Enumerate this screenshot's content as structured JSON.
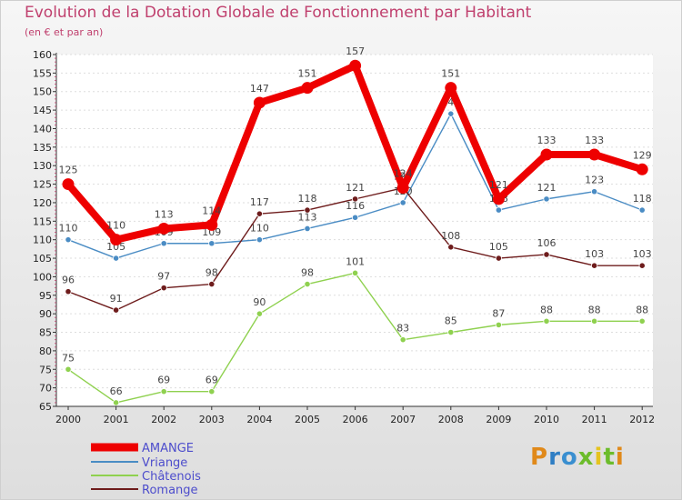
{
  "title": "Evolution de la Dotation Globale de Fonctionnement par Habitant",
  "subtitle": "(en € et par an)",
  "logo": {
    "p": "P",
    "r": "r",
    "o": "o",
    "x": "x",
    "i1": "i",
    "t": "t",
    "i2": "i"
  },
  "chart_data": {
    "type": "line",
    "title": "Evolution de la Dotation Globale de Fonctionnement par Habitant",
    "subtitle": "(en € et par an)",
    "x": [
      2000,
      2001,
      2002,
      2003,
      2004,
      2005,
      2006,
      2007,
      2008,
      2009,
      2010,
      2011,
      2012
    ],
    "ylim": [
      65,
      160
    ],
    "ytick_step": 5,
    "legend_position": "bottom-left",
    "series": [
      {
        "name": "AMANGE",
        "color": "#ee0000",
        "emphasis": true,
        "values": [
          125,
          110,
          113,
          114,
          147,
          151,
          157,
          124,
          151,
          121,
          133,
          133,
          129
        ]
      },
      {
        "name": "Vriange",
        "color": "#4a8cc4",
        "emphasis": false,
        "values": [
          110,
          105,
          109,
          109,
          110,
          113,
          116,
          120,
          144,
          118,
          121,
          123,
          118
        ]
      },
      {
        "name": "Châtenois",
        "color": "#8fd14f",
        "emphasis": false,
        "values": [
          75,
          66,
          69,
          69,
          90,
          98,
          101,
          83,
          85,
          87,
          88,
          88,
          88
        ]
      },
      {
        "name": "Romange",
        "color": "#6e1c1c",
        "emphasis": false,
        "values": [
          96,
          91,
          97,
          98,
          117,
          118,
          121,
          124,
          108,
          105,
          106,
          103,
          103
        ]
      }
    ]
  }
}
